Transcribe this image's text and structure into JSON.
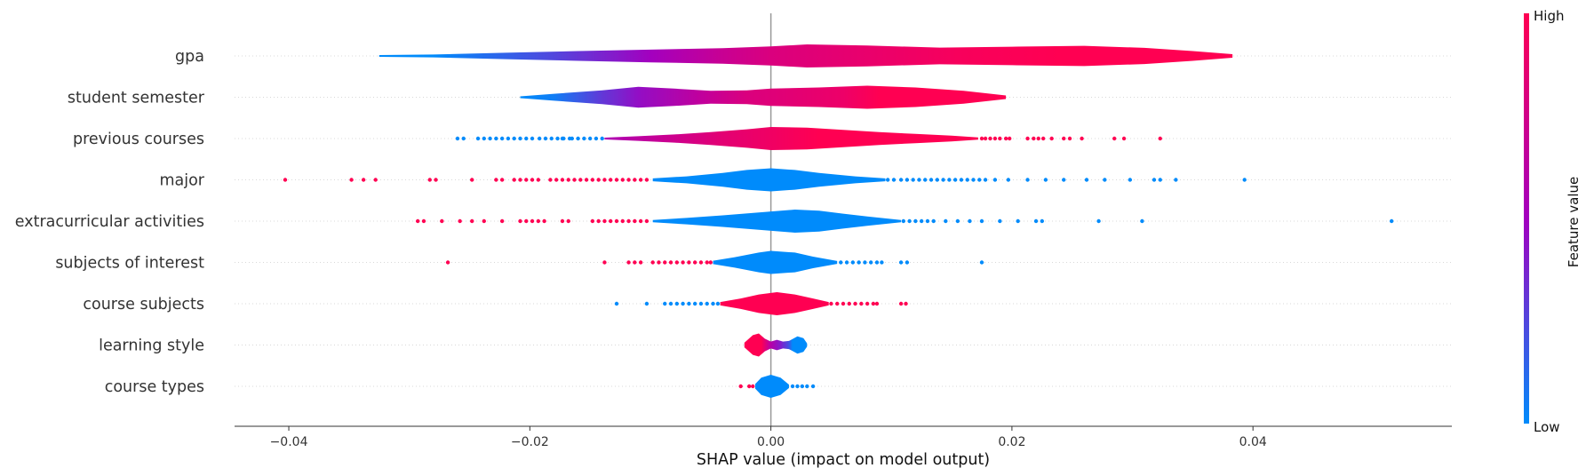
{
  "chart_data": {
    "type": "violin",
    "xlabel": "SHAP value (impact on model output)",
    "xlim": [
      -0.0445,
      0.0565
    ],
    "xticks": [
      -0.04,
      -0.02,
      0.0,
      0.02,
      0.04
    ],
    "xtick_labels": [
      "−0.04",
      "−0.02",
      "0.00",
      "0.02",
      "0.04"
    ],
    "zero_line": 0.0,
    "grid": "dotted-rows",
    "colorbar": {
      "label": "Feature value",
      "high_label": "High",
      "low_label": "Low",
      "high_color": "#ff0052",
      "low_color": "#008bfb",
      "mid_color": "#a300bf"
    },
    "features": [
      {
        "name": "gpa",
        "body_range": [
          -0.0325,
          0.0383
        ],
        "profile": [
          [
            -0.0325,
            0.08
          ],
          [
            -0.028,
            0.12
          ],
          [
            -0.022,
            0.28
          ],
          [
            -0.016,
            0.42
          ],
          [
            -0.01,
            0.55
          ],
          [
            -0.004,
            0.68
          ],
          [
            0.0,
            0.82
          ],
          [
            0.003,
            1.0
          ],
          [
            0.008,
            0.9
          ],
          [
            0.014,
            0.72
          ],
          [
            0.02,
            0.8
          ],
          [
            0.026,
            0.88
          ],
          [
            0.031,
            0.7
          ],
          [
            0.035,
            0.42
          ],
          [
            0.0383,
            0.15
          ]
        ],
        "color_stops": [
          [
            -0.0325,
            0.0
          ],
          [
            -0.028,
            0.0
          ],
          [
            -0.018,
            0.25
          ],
          [
            -0.01,
            0.5
          ],
          [
            -0.004,
            0.7
          ],
          [
            0.0,
            0.8
          ],
          [
            0.008,
            0.88
          ],
          [
            0.016,
            0.96
          ],
          [
            0.024,
            1.0
          ],
          [
            0.0383,
            1.0
          ]
        ],
        "low_points": [],
        "high_points": []
      },
      {
        "name": "student semester",
        "body_range": [
          -0.0208,
          0.0195
        ],
        "profile": [
          [
            -0.0208,
            0.08
          ],
          [
            -0.018,
            0.3
          ],
          [
            -0.014,
            0.6
          ],
          [
            -0.011,
            0.9
          ],
          [
            -0.008,
            0.75
          ],
          [
            -0.005,
            0.55
          ],
          [
            -0.002,
            0.6
          ],
          [
            0.0,
            0.75
          ],
          [
            0.004,
            0.85
          ],
          [
            0.008,
            1.0
          ],
          [
            0.012,
            0.85
          ],
          [
            0.016,
            0.55
          ],
          [
            0.0195,
            0.15
          ]
        ],
        "color_stops": [
          [
            -0.0208,
            0.0
          ],
          [
            -0.018,
            0.05
          ],
          [
            -0.014,
            0.3
          ],
          [
            -0.011,
            0.45
          ],
          [
            -0.006,
            0.65
          ],
          [
            -0.002,
            0.8
          ],
          [
            0.002,
            0.85
          ],
          [
            0.006,
            0.9
          ],
          [
            0.009,
            1.0
          ],
          [
            0.0195,
            1.0
          ]
        ],
        "low_points": [],
        "high_points": []
      },
      {
        "name": "previous courses",
        "body_range": [
          -0.0138,
          0.0172
        ],
        "profile": [
          [
            -0.0138,
            0.08
          ],
          [
            -0.011,
            0.2
          ],
          [
            -0.008,
            0.35
          ],
          [
            -0.005,
            0.55
          ],
          [
            -0.002,
            0.8
          ],
          [
            0.0,
            1.0
          ],
          [
            0.003,
            0.95
          ],
          [
            0.006,
            0.75
          ],
          [
            0.009,
            0.55
          ],
          [
            0.012,
            0.4
          ],
          [
            0.015,
            0.25
          ],
          [
            0.0172,
            0.1
          ]
        ],
        "color_stops": [
          [
            -0.0138,
            0.55
          ],
          [
            -0.009,
            0.7
          ],
          [
            -0.004,
            0.85
          ],
          [
            0.0,
            0.92
          ],
          [
            0.004,
            1.0
          ],
          [
            0.0172,
            1.0
          ]
        ],
        "low_points": [
          -0.026,
          -0.0255,
          -0.0243,
          -0.0238,
          -0.0233,
          -0.0228,
          -0.0223,
          -0.0218,
          -0.0213,
          -0.0208,
          -0.0203,
          -0.0198,
          -0.0192,
          -0.0187,
          -0.0182,
          -0.0177,
          -0.0172,
          -0.0167,
          -0.0173,
          -0.0165,
          -0.016,
          -0.0155,
          -0.015,
          -0.0145,
          -0.014
        ],
        "high_points": [
          0.0175,
          0.0178,
          0.0182,
          0.0186,
          0.019,
          0.0195,
          0.0198,
          0.0213,
          0.0218,
          0.0222,
          0.0226,
          0.0233,
          0.0243,
          0.0248,
          0.0258,
          0.0285,
          0.0293,
          0.0323
        ]
      },
      {
        "name": "major",
        "body_range": [
          -0.0098,
          0.0095
        ],
        "profile": [
          [
            -0.0098,
            0.12
          ],
          [
            -0.007,
            0.3
          ],
          [
            -0.004,
            0.6
          ],
          [
            -0.002,
            0.85
          ],
          [
            0.0,
            1.0
          ],
          [
            0.002,
            0.85
          ],
          [
            0.004,
            0.6
          ],
          [
            0.007,
            0.3
          ],
          [
            0.0095,
            0.12
          ]
        ],
        "color_stops": [
          [
            -0.0098,
            0.0
          ],
          [
            0.0095,
            0.0
          ]
        ],
        "low_points": [
          0.0097,
          0.0102,
          0.0108,
          0.0113,
          0.0118,
          0.0123,
          0.0128,
          0.0133,
          0.0138,
          0.0143,
          0.0148,
          0.0153,
          0.0158,
          0.0163,
          0.0168,
          0.0173,
          0.0178,
          0.0186,
          0.0197,
          0.0213,
          0.0228,
          0.0243,
          0.0262,
          0.0277,
          0.0298,
          0.0318,
          0.0323,
          0.0336,
          0.0393
        ],
        "high_points": [
          -0.0403,
          -0.0348,
          -0.0338,
          -0.0328,
          -0.0283,
          -0.0278,
          -0.0248,
          -0.0228,
          -0.0223,
          -0.0213,
          -0.0208,
          -0.0203,
          -0.0198,
          -0.0193,
          -0.0183,
          -0.0178,
          -0.0173,
          -0.0168,
          -0.0163,
          -0.0158,
          -0.0153,
          -0.0148,
          -0.0143,
          -0.0138,
          -0.0133,
          -0.0128,
          -0.0123,
          -0.0118,
          -0.0113,
          -0.0108,
          -0.0103
        ]
      },
      {
        "name": "extracurricular activities",
        "body_range": [
          -0.0098,
          0.0108
        ],
        "profile": [
          [
            -0.0098,
            0.1
          ],
          [
            -0.007,
            0.28
          ],
          [
            -0.004,
            0.5
          ],
          [
            -0.001,
            0.75
          ],
          [
            0.002,
            1.0
          ],
          [
            0.004,
            0.9
          ],
          [
            0.006,
            0.65
          ],
          [
            0.008,
            0.4
          ],
          [
            0.0108,
            0.1
          ]
        ],
        "color_stops": [
          [
            -0.0098,
            0.0
          ],
          [
            0.0108,
            0.0
          ]
        ],
        "low_points": [
          0.011,
          0.0115,
          0.012,
          0.0125,
          0.013,
          0.0135,
          0.0145,
          0.0155,
          0.0165,
          0.0175,
          0.019,
          0.0205,
          0.022,
          0.0225,
          0.0272,
          0.0308,
          0.0515
        ],
        "high_points": [
          -0.0293,
          -0.0288,
          -0.0273,
          -0.0258,
          -0.0248,
          -0.0238,
          -0.0223,
          -0.0208,
          -0.0203,
          -0.0198,
          -0.0193,
          -0.0188,
          -0.0173,
          -0.0168,
          -0.0148,
          -0.0143,
          -0.0138,
          -0.0133,
          -0.0128,
          -0.0123,
          -0.0118,
          -0.0113,
          -0.0108,
          -0.0103
        ]
      },
      {
        "name": "subjects of interest",
        "body_range": [
          -0.0048,
          0.0055
        ],
        "profile": [
          [
            -0.0048,
            0.15
          ],
          [
            -0.003,
            0.45
          ],
          [
            -0.001,
            0.85
          ],
          [
            0.0,
            1.0
          ],
          [
            0.002,
            0.85
          ],
          [
            0.0035,
            0.5
          ],
          [
            0.0055,
            0.12
          ]
        ],
        "color_stops": [
          [
            -0.0048,
            0.0
          ],
          [
            0.0055,
            0.0
          ]
        ],
        "low_points": [
          0.0058,
          0.0063,
          0.0068,
          0.0073,
          0.0078,
          0.0083,
          0.0088,
          0.0092,
          0.0108,
          0.0113,
          0.0175
        ],
        "high_points": [
          -0.0268,
          -0.0138,
          -0.0118,
          -0.0113,
          -0.0108,
          -0.0098,
          -0.0093,
          -0.0088,
          -0.0083,
          -0.0078,
          -0.0073,
          -0.0068,
          -0.0063,
          -0.0058,
          -0.0053,
          -0.005
        ]
      },
      {
        "name": "course subjects",
        "body_range": [
          -0.0042,
          0.0048
        ],
        "profile": [
          [
            -0.0042,
            0.15
          ],
          [
            -0.0025,
            0.45
          ],
          [
            -0.001,
            0.8
          ],
          [
            0.0005,
            1.0
          ],
          [
            0.002,
            0.8
          ],
          [
            0.0035,
            0.45
          ],
          [
            0.0048,
            0.15
          ]
        ],
        "color_stops": [
          [
            -0.0042,
            1.0
          ],
          [
            0.0048,
            1.0
          ]
        ],
        "low_points": [
          -0.0128,
          -0.0103,
          -0.0088,
          -0.0083,
          -0.0078,
          -0.0073,
          -0.0068,
          -0.0063,
          -0.0058,
          -0.0053,
          -0.0048,
          -0.0044
        ],
        "high_points": [
          0.005,
          0.0055,
          0.006,
          0.0065,
          0.007,
          0.0075,
          0.008,
          0.0085,
          0.0088,
          0.0108,
          0.0112
        ]
      },
      {
        "name": "learning style",
        "body_range": [
          -0.0022,
          0.003
        ],
        "profile": [
          [
            -0.0022,
            0.2
          ],
          [
            -0.0015,
            0.85
          ],
          [
            -0.001,
            1.0
          ],
          [
            -0.0005,
            0.55
          ],
          [
            0.0,
            0.3
          ],
          [
            0.0005,
            0.45
          ],
          [
            0.001,
            0.3
          ],
          [
            0.0015,
            0.35
          ],
          [
            0.0022,
            0.75
          ],
          [
            0.0027,
            0.6
          ],
          [
            0.003,
            0.15
          ]
        ],
        "color_stops": [
          [
            -0.0022,
            1.0
          ],
          [
            -0.0008,
            1.0
          ],
          [
            0.0,
            0.6
          ],
          [
            0.0008,
            0.4
          ],
          [
            0.0015,
            0.2
          ],
          [
            0.0018,
            0.0
          ],
          [
            0.003,
            0.0
          ]
        ],
        "low_points": [],
        "high_points": []
      },
      {
        "name": "course types",
        "body_range": [
          -0.0013,
          0.0015
        ],
        "profile": [
          [
            -0.0013,
            0.2
          ],
          [
            -0.0008,
            0.75
          ],
          [
            0.0,
            1.0
          ],
          [
            0.0008,
            0.75
          ],
          [
            0.0015,
            0.15
          ]
        ],
        "color_stops": [
          [
            -0.0013,
            0.0
          ],
          [
            0.0015,
            0.0
          ]
        ],
        "low_points": [
          0.0018,
          0.0022,
          0.0026,
          0.003,
          0.0035
        ],
        "high_points": [
          -0.0025,
          -0.0018,
          -0.0015
        ]
      }
    ]
  }
}
